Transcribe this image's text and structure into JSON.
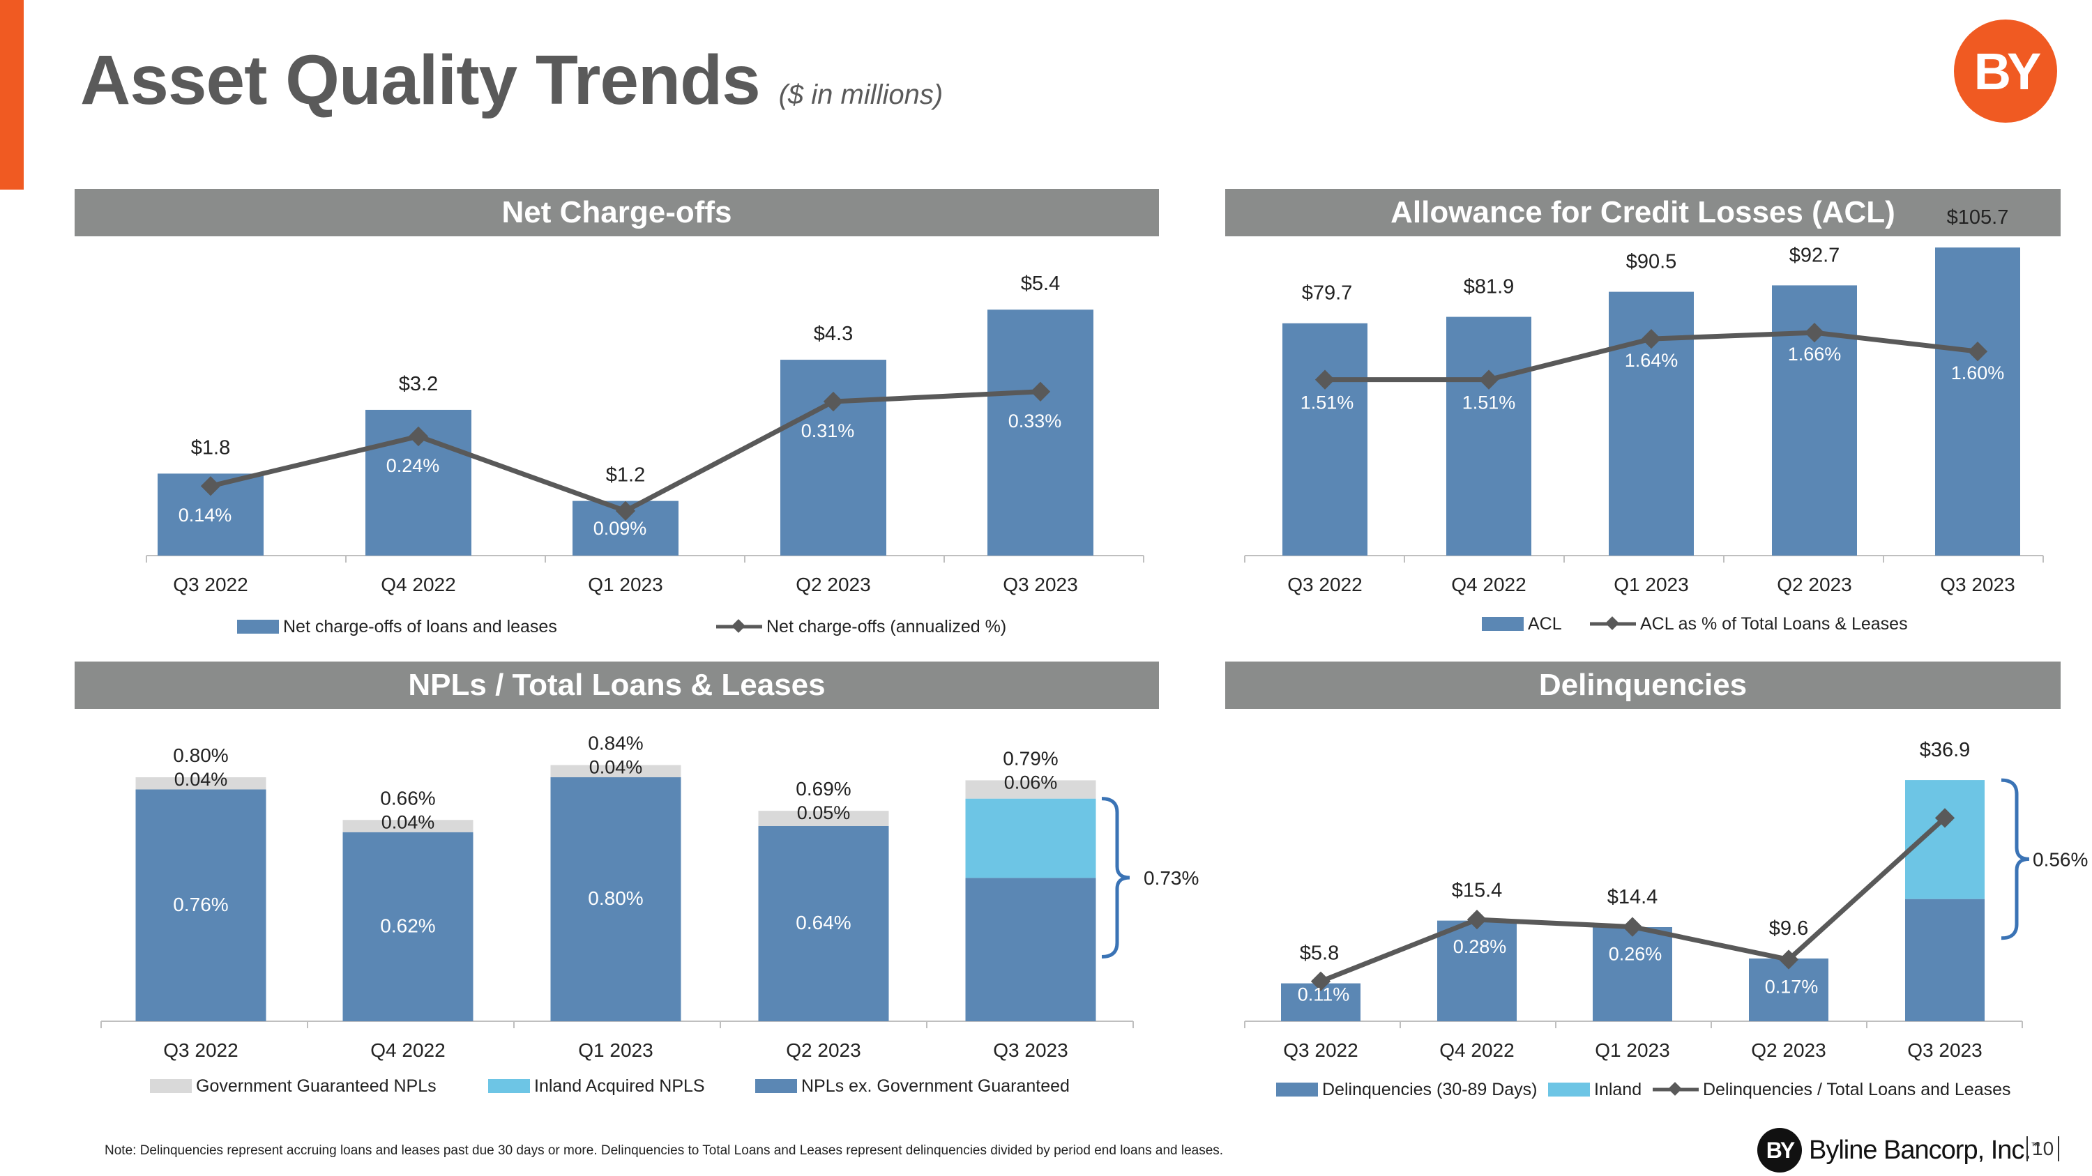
{
  "title": "Asset Quality Trends",
  "subtitle": "($ in millions)",
  "logo_text": "BY",
  "colors": {
    "accent": "#f05a22",
    "bar": "#5b87b4",
    "inland": "#6dc5e5",
    "gov": "#d9d9d9",
    "line": "#595959",
    "header": "#8a8c8b"
  },
  "panels": {
    "nco": "Net Charge-offs",
    "acl": "Allowance for Credit Losses (ACL)",
    "npl": "NPLs / Total Loans & Leases",
    "del": "Delinquencies"
  },
  "chart_data": [
    {
      "id": "nco",
      "type": "bar",
      "title": "Net Charge-offs",
      "categories": [
        "Q3 2022",
        "Q4 2022",
        "Q1 2023",
        "Q2 2023",
        "Q3 2023"
      ],
      "series": [
        {
          "name": "Net charge-offs of loans and leases",
          "kind": "bar",
          "values": [
            1.8,
            3.2,
            1.2,
            4.3,
            5.4
          ],
          "labels": [
            "$1.8",
            "$3.2",
            "$1.2",
            "$4.3",
            "$5.4"
          ]
        },
        {
          "name": "Net charge-offs (annualized %)",
          "kind": "line",
          "values": [
            0.14,
            0.24,
            0.09,
            0.31,
            0.33
          ],
          "labels": [
            "0.14%",
            "0.24%",
            "0.09%",
            "0.31%",
            "0.33%"
          ]
        }
      ],
      "ylim": [
        0,
        6
      ],
      "y2lim": [
        0,
        0.55
      ]
    },
    {
      "id": "acl",
      "type": "bar",
      "title": "Allowance for Credit Losses (ACL)",
      "categories": [
        "Q3 2022",
        "Q4 2022",
        "Q1 2023",
        "Q2 2023",
        "Q3 2023"
      ],
      "series": [
        {
          "name": "ACL",
          "kind": "bar",
          "values": [
            79.7,
            81.9,
            90.5,
            92.7,
            105.7
          ],
          "labels": [
            "$79.7",
            "$81.9",
            "$90.5",
            "$92.7",
            "$105.7"
          ]
        },
        {
          "name": "ACL as % of Total Loans & Leases",
          "kind": "line",
          "values": [
            1.51,
            1.51,
            1.64,
            1.66,
            1.6
          ],
          "labels": [
            "1.51%",
            "1.51%",
            "1.64%",
            "1.66%",
            "1.60%"
          ]
        }
      ],
      "ylim": [
        0,
        120
      ],
      "y2lim": [
        0.95,
        1.82
      ]
    },
    {
      "id": "npl",
      "type": "bar",
      "stacked": true,
      "title": "NPLs / Total Loans & Leases",
      "categories": [
        "Q3 2022",
        "Q4 2022",
        "Q1 2023",
        "Q2 2023",
        "Q3 2023"
      ],
      "series": [
        {
          "name": "NPLs ex. Government Guaranteed",
          "values": [
            0.76,
            0.62,
            0.8,
            0.64,
            0.47
          ],
          "labels": [
            "0.76%",
            "0.62%",
            "0.80%",
            "0.64%",
            ""
          ]
        },
        {
          "name": "Inland Acquired NPLS",
          "values": [
            0,
            0,
            0,
            0,
            0.26
          ],
          "labels": [
            "",
            "",
            "",
            "",
            ""
          ]
        },
        {
          "name": "Government Guaranteed NPLs",
          "values": [
            0.04,
            0.04,
            0.04,
            0.05,
            0.06
          ],
          "labels": [
            "0.04%",
            "0.04%",
            "0.04%",
            "0.05%",
            "0.06%"
          ]
        }
      ],
      "totals": [
        "0.80%",
        "0.66%",
        "0.84%",
        "0.69%",
        "0.79%"
      ],
      "bracket_label": "0.73%",
      "ylim": [
        0,
        0.9
      ]
    },
    {
      "id": "del",
      "type": "bar",
      "stacked": true,
      "title": "Delinquencies",
      "categories": [
        "Q3 2022",
        "Q4 2022",
        "Q1 2023",
        "Q2 2023",
        "Q3 2023"
      ],
      "series": [
        {
          "name": "Delinquencies (30-89 Days)",
          "values": [
            5.8,
            15.4,
            14.4,
            9.6,
            18.7
          ]
        },
        {
          "name": "Inland",
          "values": [
            0,
            0,
            0,
            0,
            18.2
          ]
        },
        {
          "name": "Delinquencies / Total Loans and Leases",
          "kind": "line",
          "values": [
            0.11,
            0.28,
            0.26,
            0.17,
            0.56
          ],
          "labels": [
            "0.11%",
            "0.28%",
            "0.26%",
            "0.17%",
            ""
          ]
        }
      ],
      "totals": [
        "$5.8",
        "$15.4",
        "$14.4",
        "$9.6",
        "$36.9"
      ],
      "bracket_label": "0.56%",
      "ylim": [
        0,
        42
      ],
      "y2lim": [
        0,
        0.72
      ]
    }
  ],
  "footnote": "Note: Delinquencies represent accruing loans and leases past due 30 days or more. Delinquencies to Total Loans and Leases represent delinquencies divided by period end loans and leases.",
  "footer": {
    "company": "Byline Bancorp, Inc.",
    "mark": "BY",
    "tm": "™",
    "page": "10"
  }
}
